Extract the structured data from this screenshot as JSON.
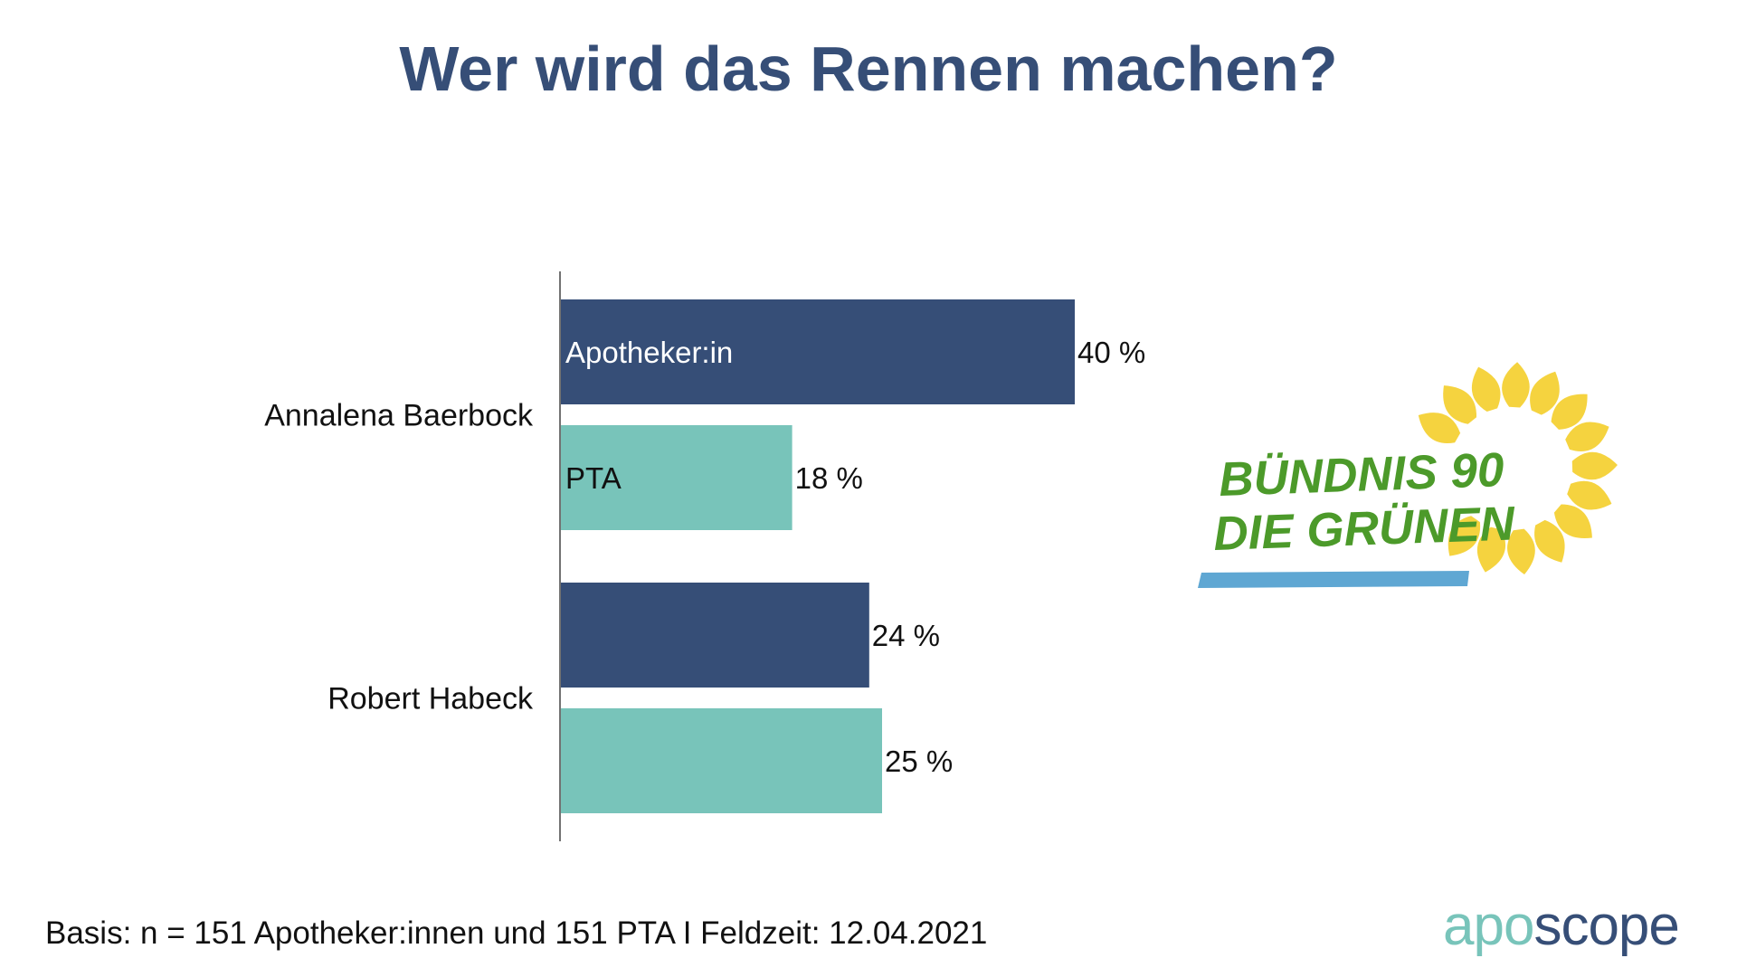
{
  "title": "Wer wird das Rennen machen?",
  "chart_data": {
    "type": "bar",
    "orientation": "horizontal",
    "categories": [
      "Annalena Baerbock",
      "Robert Habeck"
    ],
    "series": [
      {
        "name": "Apotheker:in",
        "values": [
          40,
          24
        ],
        "color": "#364e77"
      },
      {
        "name": "PTA",
        "values": [
          18,
          25
        ],
        "color": "#78c4ba"
      }
    ],
    "value_suffix": " %",
    "xlim": [
      0,
      40
    ],
    "legend": "inline-labels-on-first-bars",
    "grid": false
  },
  "party_logo": {
    "line1": "BÜNDNIS 90",
    "line2": "DIE GRÜNEN",
    "text_color": "#4c9a2a",
    "flower_color": "#f5d33f",
    "underline_color": "#5fa7d3"
  },
  "footer": {
    "basis": "Basis: n = 151 Apotheker:innen und 151 PTA I Feldzeit: 12.04.2021"
  },
  "brand": {
    "part1": "apo",
    "part2": "scope"
  }
}
